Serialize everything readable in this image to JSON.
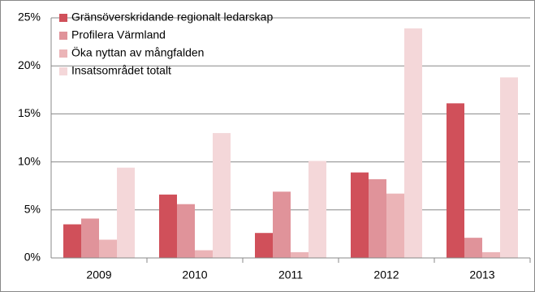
{
  "chart_data": {
    "type": "bar",
    "categories": [
      "2009",
      "2010",
      "2011",
      "2012",
      "2013"
    ],
    "series": [
      {
        "name": "Gränsöverskridande regionalt ledarskap",
        "color": "#d0505a",
        "values": [
          3.5,
          6.6,
          2.6,
          8.9,
          16.1
        ]
      },
      {
        "name": "Profilera Värmland",
        "color": "#e0939a",
        "values": [
          4.1,
          5.6,
          6.9,
          8.2,
          2.1
        ]
      },
      {
        "name": "Öka nyttan av mångfalden",
        "color": "#ebb4b7",
        "values": [
          1.9,
          0.8,
          0.6,
          6.7,
          0.6
        ]
      },
      {
        "name": "Insatsområdet totalt",
        "color": "#f4d7d9",
        "values": [
          9.4,
          13.0,
          10.1,
          23.9,
          18.8
        ]
      }
    ],
    "ylim": [
      0,
      25
    ],
    "yticks": [
      {
        "value": 0,
        "label": "0%"
      },
      {
        "value": 5,
        "label": "5%"
      },
      {
        "value": 10,
        "label": "10%"
      },
      {
        "value": 15,
        "label": "15%"
      },
      {
        "value": 20,
        "label": "20%"
      },
      {
        "value": 25,
        "label": "25%"
      }
    ],
    "grid": true,
    "legend": "top-left"
  }
}
